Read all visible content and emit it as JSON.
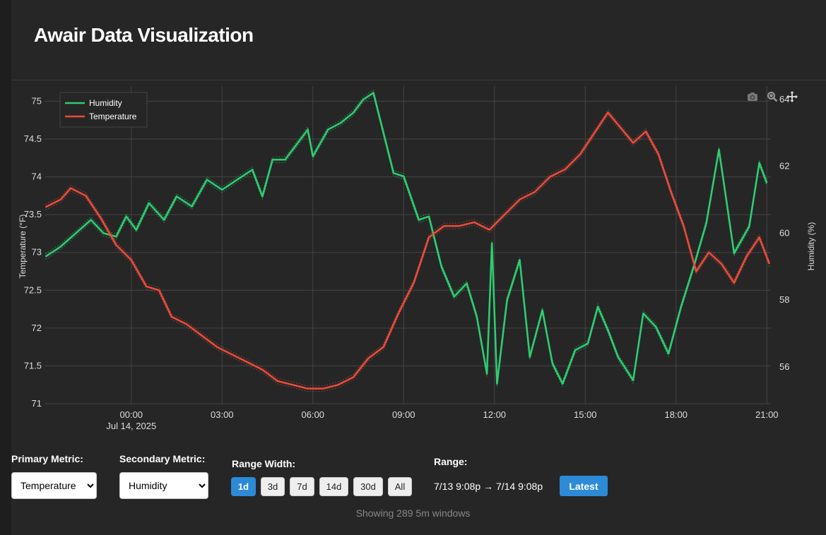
{
  "app": {
    "title": "Awair Data Visualization"
  },
  "chart_data": {
    "type": "line",
    "x_tick_labels": [
      "00:00",
      "03:00",
      "06:00",
      "09:00",
      "12:00",
      "15:00",
      "18:00",
      "21:00"
    ],
    "x_date_label": "Jul 14, 2025",
    "x_range": [
      "2025-07-13 21:08",
      "2025-07-14 21:08"
    ],
    "y_left": {
      "label": "Temperature (°F)",
      "range": [
        71,
        75.2
      ],
      "ticks": [
        "71",
        "71.5",
        "72",
        "72.5",
        "73",
        "73.5",
        "74",
        "74.5",
        "75"
      ]
    },
    "y_right": {
      "label": "Humidity (%)",
      "range": [
        54.9,
        64.4
      ],
      "ticks": [
        "56",
        "58",
        "60",
        "62",
        "64"
      ]
    },
    "grid": true,
    "legend_placement": "top-left",
    "series": [
      {
        "name": "Humidity",
        "axis": "right",
        "color": "#2ecc71",
        "points": [
          [
            "2025-07-13 21:10",
            59.3
          ],
          [
            "2025-07-13 21:40",
            59.6
          ],
          [
            "2025-07-13 22:10",
            60.0
          ],
          [
            "2025-07-13 22:40",
            60.4
          ],
          [
            "2025-07-13 23:05",
            60.0
          ],
          [
            "2025-07-13 23:30",
            59.9
          ],
          [
            "2025-07-13 23:50",
            60.5
          ],
          [
            "2025-07-14 00:10",
            60.1
          ],
          [
            "2025-07-14 00:35",
            60.9
          ],
          [
            "2025-07-14 01:05",
            60.4
          ],
          [
            "2025-07-14 01:30",
            61.1
          ],
          [
            "2025-07-14 02:00",
            60.8
          ],
          [
            "2025-07-14 02:30",
            61.6
          ],
          [
            "2025-07-14 03:00",
            61.3
          ],
          [
            "2025-07-14 03:30",
            61.6
          ],
          [
            "2025-07-14 04:00",
            61.9
          ],
          [
            "2025-07-14 04:20",
            61.1
          ],
          [
            "2025-07-14 04:40",
            62.2
          ],
          [
            "2025-07-14 05:05",
            62.2
          ],
          [
            "2025-07-14 05:25",
            62.6
          ],
          [
            "2025-07-14 05:50",
            63.1
          ],
          [
            "2025-07-14 06:00",
            62.3
          ],
          [
            "2025-07-14 06:30",
            63.1
          ],
          [
            "2025-07-14 06:55",
            63.3
          ],
          [
            "2025-07-14 07:20",
            63.6
          ],
          [
            "2025-07-14 07:40",
            64.0
          ],
          [
            "2025-07-14 08:00",
            64.2
          ],
          [
            "2025-07-14 08:20",
            63.0
          ],
          [
            "2025-07-14 08:40",
            61.8
          ],
          [
            "2025-07-14 09:00",
            61.7
          ],
          [
            "2025-07-14 09:30",
            60.4
          ],
          [
            "2025-07-14 09:50",
            60.5
          ],
          [
            "2025-07-14 10:15",
            59.0
          ],
          [
            "2025-07-14 10:40",
            58.1
          ],
          [
            "2025-07-14 11:05",
            58.5
          ],
          [
            "2025-07-14 11:25",
            57.5
          ],
          [
            "2025-07-14 11:45",
            55.8
          ],
          [
            "2025-07-14 11:55",
            59.7
          ],
          [
            "2025-07-14 12:05",
            55.5
          ],
          [
            "2025-07-14 12:25",
            58.0
          ],
          [
            "2025-07-14 12:50",
            59.2
          ],
          [
            "2025-07-14 13:10",
            56.3
          ],
          [
            "2025-07-14 13:35",
            57.7
          ],
          [
            "2025-07-14 13:55",
            56.1
          ],
          [
            "2025-07-14 14:15",
            55.5
          ],
          [
            "2025-07-14 14:40",
            56.5
          ],
          [
            "2025-07-14 15:05",
            56.7
          ],
          [
            "2025-07-14 15:25",
            57.8
          ],
          [
            "2025-07-14 15:45",
            57.1
          ],
          [
            "2025-07-14 16:05",
            56.3
          ],
          [
            "2025-07-14 16:35",
            55.6
          ],
          [
            "2025-07-14 16:55",
            57.6
          ],
          [
            "2025-07-14 17:20",
            57.2
          ],
          [
            "2025-07-14 17:45",
            56.4
          ],
          [
            "2025-07-14 18:10",
            57.8
          ],
          [
            "2025-07-14 18:35",
            59.0
          ],
          [
            "2025-07-14 19:00",
            60.3
          ],
          [
            "2025-07-14 19:25",
            62.5
          ],
          [
            "2025-07-14 19:55",
            59.4
          ],
          [
            "2025-07-14 20:25",
            60.2
          ],
          [
            "2025-07-14 20:45",
            62.1
          ],
          [
            "2025-07-14 21:00",
            61.5
          ]
        ]
      },
      {
        "name": "Temperature",
        "axis": "left",
        "color": "#e74c3c",
        "points": [
          [
            "2025-07-13 21:10",
            73.6
          ],
          [
            "2025-07-13 21:40",
            73.7
          ],
          [
            "2025-07-13 22:00",
            73.85
          ],
          [
            "2025-07-13 22:30",
            73.75
          ],
          [
            "2025-07-13 23:00",
            73.45
          ],
          [
            "2025-07-13 23:30",
            73.1
          ],
          [
            "2025-07-14 00:00",
            72.9
          ],
          [
            "2025-07-14 00:30",
            72.55
          ],
          [
            "2025-07-14 00:55",
            72.5
          ],
          [
            "2025-07-14 01:20",
            72.15
          ],
          [
            "2025-07-14 01:50",
            72.05
          ],
          [
            "2025-07-14 02:20",
            71.9
          ],
          [
            "2025-07-14 02:50",
            71.75
          ],
          [
            "2025-07-14 03:20",
            71.65
          ],
          [
            "2025-07-14 03:50",
            71.55
          ],
          [
            "2025-07-14 04:20",
            71.45
          ],
          [
            "2025-07-14 04:50",
            71.3
          ],
          [
            "2025-07-14 05:20",
            71.25
          ],
          [
            "2025-07-14 05:50",
            71.2
          ],
          [
            "2025-07-14 06:20",
            71.2
          ],
          [
            "2025-07-14 06:50",
            71.25
          ],
          [
            "2025-07-14 07:20",
            71.35
          ],
          [
            "2025-07-14 07:50",
            71.6
          ],
          [
            "2025-07-14 08:20",
            71.75
          ],
          [
            "2025-07-14 08:50",
            72.2
          ],
          [
            "2025-07-14 09:20",
            72.6
          ],
          [
            "2025-07-14 09:50",
            73.2
          ],
          [
            "2025-07-14 10:20",
            73.35
          ],
          [
            "2025-07-14 10:50",
            73.35
          ],
          [
            "2025-07-14 11:20",
            73.4
          ],
          [
            "2025-07-14 11:50",
            73.3
          ],
          [
            "2025-07-14 12:20",
            73.5
          ],
          [
            "2025-07-14 12:50",
            73.7
          ],
          [
            "2025-07-14 13:20",
            73.8
          ],
          [
            "2025-07-14 13:50",
            74.0
          ],
          [
            "2025-07-14 14:20",
            74.1
          ],
          [
            "2025-07-14 14:50",
            74.3
          ],
          [
            "2025-07-14 15:20",
            74.6
          ],
          [
            "2025-07-14 15:45",
            74.85
          ],
          [
            "2025-07-14 16:10",
            74.65
          ],
          [
            "2025-07-14 16:35",
            74.45
          ],
          [
            "2025-07-14 17:00",
            74.6
          ],
          [
            "2025-07-14 17:25",
            74.3
          ],
          [
            "2025-07-14 17:50",
            73.8
          ],
          [
            "2025-07-14 18:15",
            73.35
          ],
          [
            "2025-07-14 18:40",
            72.75
          ],
          [
            "2025-07-14 19:05",
            73.0
          ],
          [
            "2025-07-14 19:30",
            72.85
          ],
          [
            "2025-07-14 19:55",
            72.6
          ],
          [
            "2025-07-14 20:20",
            72.95
          ],
          [
            "2025-07-14 20:45",
            73.2
          ],
          [
            "2025-07-14 21:05",
            72.85
          ]
        ]
      }
    ]
  },
  "modebar": {
    "camera_icon": "camera-icon",
    "zoom_icon": "zoom-icon",
    "pan_icon": "pan-icon"
  },
  "controls": {
    "primary_label": "Primary Metric:",
    "primary_value": "Temperature",
    "secondary_label": "Secondary Metric:",
    "secondary_value": "Humidity",
    "range_width_label": "Range Width:",
    "range_buttons": [
      "1d",
      "3d",
      "7d",
      "14d",
      "30d",
      "All"
    ],
    "range_active": "1d",
    "range_label": "Range:",
    "range_text": "7/13 9:08p → 7/14 9:08p",
    "latest_label": "Latest"
  },
  "status": {
    "text": "Showing 289 5m windows"
  },
  "colors": {
    "accent": "#2d8ad6",
    "humidity": "#2ecc71",
    "temperature": "#e74c3c"
  }
}
